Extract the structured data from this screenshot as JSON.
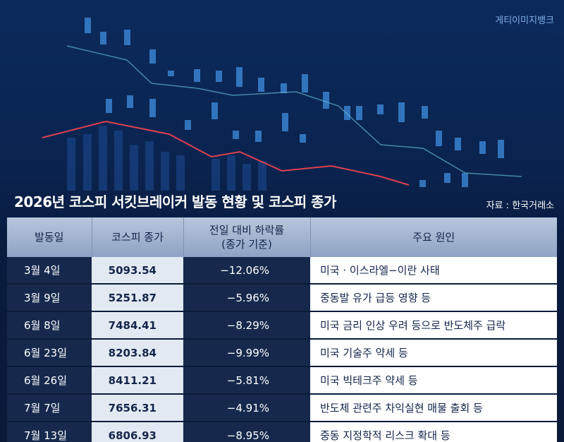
{
  "header": {
    "credit": "게티이미지뱅크",
    "title": "2026년 코스피 서킷브레이커 발동 현황 및 코스피 종가",
    "source": "자료 : 한국거래소"
  },
  "table": {
    "columns": [
      [
        "발동일"
      ],
      [
        "코스피 종가"
      ],
      [
        "전일 대비 하락률",
        "(종가 기준)"
      ],
      [
        "주요 원인"
      ]
    ],
    "rows": [
      [
        "3월 4일",
        "5093.54",
        "−12.06%",
        "미국 · 이스라엘−이란 사태"
      ],
      [
        "3월 9일",
        "5251.87",
        "−5.96%",
        "중동발 유가 급등 영향 등"
      ],
      [
        "6월 8일",
        "7484.41",
        "−8.29%",
        "미국 금리 인상 우려 등으로 반도체주 급락"
      ],
      [
        "6월 23일",
        "8203.84",
        "−9.99%",
        "미국 기술주 약세 등"
      ],
      [
        "6월 26일",
        "8411.21",
        "−5.81%",
        "미국 빅테크주 약세 등"
      ],
      [
        "7월 7일",
        "7656.31",
        "−4.91%",
        "반도체 관련주 차익실현 매물 출회 등"
      ],
      [
        "7월 13일",
        "6806.93",
        "−8.95%",
        "중동 지정학적 리스크 확대 등"
      ]
    ]
  }
}
